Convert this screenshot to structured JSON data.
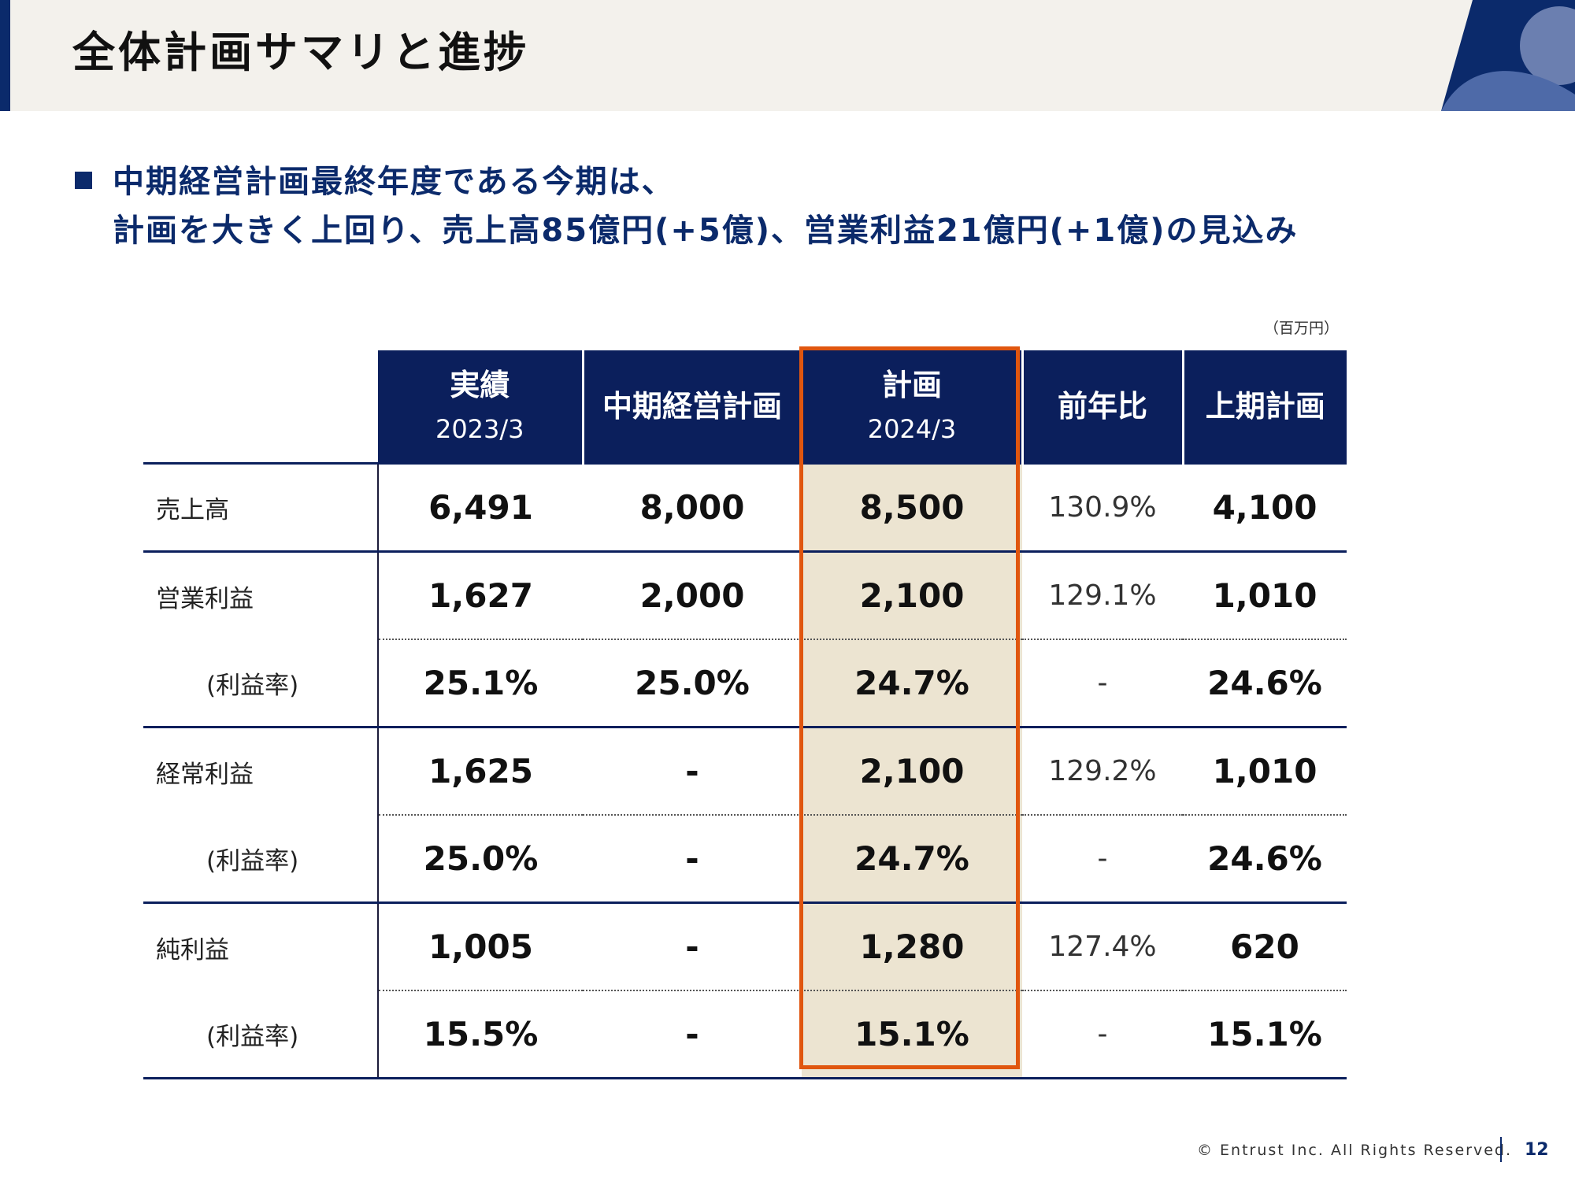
{
  "title": "全体計画サマリと進捗",
  "headline": {
    "line1": "中期経営計画最終年度である今期は、",
    "line2": "計画を大きく上回り、売上高85億円(+5億)、営業利益21億円(+1億)の見込み"
  },
  "unit": "（百万円）",
  "table": {
    "headers": [
      {
        "main": "実績",
        "sub": "2023/3"
      },
      {
        "main": "中期経営計画",
        "sub": ""
      },
      {
        "main": "計画",
        "sub": "2024/3"
      },
      {
        "main": "前年比",
        "sub": ""
      },
      {
        "main": "上期計画",
        "sub": ""
      }
    ],
    "rows": [
      {
        "label": "売上高",
        "values": [
          "6,491",
          "8,000",
          "8,500",
          "130.9%",
          "4,100"
        ]
      },
      {
        "label": "営業利益",
        "values": [
          "1,627",
          "2,000",
          "2,100",
          "129.1%",
          "1,010"
        ]
      },
      {
        "label": "(利益率)",
        "values": [
          "25.1%",
          "25.0%",
          "24.7%",
          "-",
          "24.6%"
        ]
      },
      {
        "label": "経常利益",
        "values": [
          "1,625",
          "-",
          "2,100",
          "129.2%",
          "1,010"
        ]
      },
      {
        "label": "(利益率)",
        "values": [
          "25.0%",
          "-",
          "24.7%",
          "-",
          "24.6%"
        ]
      },
      {
        "label": "純利益",
        "values": [
          "1,005",
          "-",
          "1,280",
          "127.4%",
          "620"
        ]
      },
      {
        "label": "(利益率)",
        "values": [
          "15.5%",
          "-",
          "15.1%",
          "-",
          "15.1%"
        ]
      }
    ]
  },
  "colors": {
    "navy": "#0b1f5c",
    "highlight_border": "#e0560f",
    "highlight_fill": "#ece4d1"
  },
  "footer": {
    "copyright": "© Entrust Inc. All Rights Reserved.",
    "page": "12"
  }
}
